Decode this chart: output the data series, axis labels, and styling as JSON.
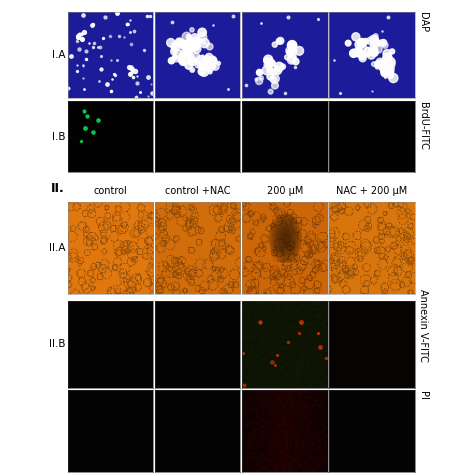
{
  "background_color": "#ffffff",
  "col_labels_top_II": [
    "control",
    "control +NAC",
    "200 μM",
    "NAC + 200 μM"
  ],
  "right_labels": [
    "DAP",
    "BrdU-FITC",
    "Annexin V-FITC",
    "PI"
  ],
  "section_II_label": "II.",
  "IA_bg": "#1c1c9a",
  "IB_bg": "#020202",
  "IIA_bg_colors": [
    "#d97010",
    "#cc6808",
    "#c06005",
    "#d07010"
  ],
  "IIB_bg": "#030303",
  "IIB_col2_bg": "#0a1005",
  "IIC_bg": "#030303",
  "IIC_col2_bg": "#1a0303",
  "figsize": [
    4.74,
    4.74
  ],
  "dpi": 100
}
